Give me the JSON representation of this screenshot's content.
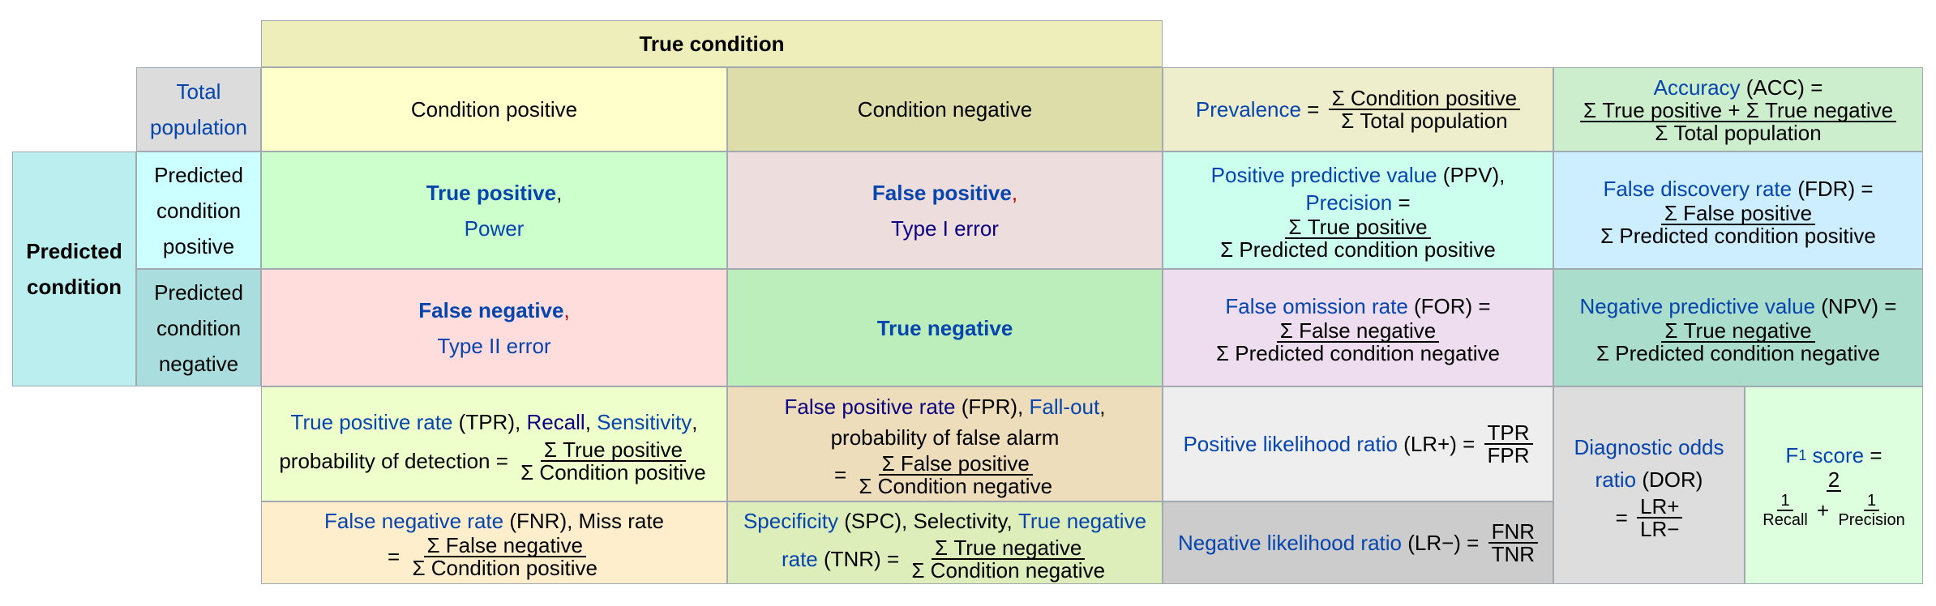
{
  "header": {
    "true_condition": "True condition",
    "predicted_condition": "Predicted condition",
    "total_population": "Total population"
  },
  "cols": {
    "cond_pos": "Condition positive",
    "cond_neg": "Condition negative"
  },
  "rows": {
    "pred_pos": "Predicted condition positive",
    "pred_neg": "Predicted condition negative"
  },
  "cells": {
    "tp": {
      "title": "True positive",
      "comma": ",",
      "sub": "Power"
    },
    "fp": {
      "title": "False positive",
      "comma": ",",
      "sub": "Type I error"
    },
    "fn": {
      "title": "False negative",
      "comma": ",",
      "sub": "Type II error"
    },
    "tn": {
      "title": "True negative"
    }
  },
  "prevalence": {
    "label": "Prevalence",
    "eq": " = ",
    "num": "Σ Condition positive",
    "den": "Σ Total population"
  },
  "accuracy": {
    "label": "Accuracy",
    "abbr": " (ACC) =",
    "num": "Σ True positive + Σ True negative",
    "den": "Σ Total population"
  },
  "ppv": {
    "label": "Positive predictive value",
    "abbr": " (PPV),",
    "label2": "Precision",
    "eq": " =",
    "num": "Σ True positive",
    "den": "Σ Predicted condition positive"
  },
  "fdr": {
    "label": "False discovery rate",
    "abbr": " (FDR) =",
    "num": "Σ False positive",
    "den": "Σ Predicted condition positive"
  },
  "for": {
    "label": "False omission rate",
    "abbr": " (FOR) =",
    "num": "Σ False negative",
    "den": "Σ Predicted condition negative"
  },
  "npv": {
    "label": "Negative predictive value",
    "abbr": " (NPV) =",
    "num": "Σ True negative",
    "den": "Σ Predicted condition negative"
  },
  "tpr": {
    "label": "True positive rate",
    "abbr": " (TPR), ",
    "recall": "Recall",
    "comma": ", ",
    "sens": "Sensitivity",
    "comma2": ",",
    "prob": "probability of detection",
    "eq": " = ",
    "num": "Σ True positive",
    "den": "Σ Condition positive"
  },
  "fpr": {
    "label": "False positive rate",
    "abbr": " (FPR), ",
    "fallout": "Fall-out",
    "comma": ",",
    "prob": "probability of false alarm",
    "eq": "= ",
    "num": "Σ False positive",
    "den": "Σ Condition negative"
  },
  "fnr": {
    "label": "False negative rate",
    "abbr": " (FNR), Miss rate",
    "eq": "= ",
    "num": "Σ False negative",
    "den": "Σ Condition positive"
  },
  "spc": {
    "label": "Specificity",
    "abbr": " (SPC), Selectivity, ",
    "tnr": "True negative",
    "rate": "rate",
    "abbr2": " (TNR) = ",
    "num": "Σ True negative",
    "den": "Σ Condition negative"
  },
  "lrp": {
    "label": "Positive likelihood ratio",
    "abbr": " (LR+) = ",
    "num": "TPR",
    "den": "FPR"
  },
  "lrn": {
    "label": "Negative likelihood ratio",
    "abbr": " (LR−) = ",
    "num": "FNR",
    "den": "TNR"
  },
  "dor": {
    "label1": "Diagnostic odds",
    "label2": "ratio",
    "abbr": " (DOR)",
    "eq": "= ",
    "num": "LR+",
    "den": "LR−"
  },
  "f1": {
    "label": "F",
    "sub": "1",
    "label2": " score",
    "eq": " =",
    "num": "2",
    "r1": "1",
    "r1d": "Recall",
    "plus": " + ",
    "r2": "1",
    "r2d": "Precision"
  },
  "colors": {
    "header_bg": "#eeeebb",
    "link": "#0645ad"
  }
}
